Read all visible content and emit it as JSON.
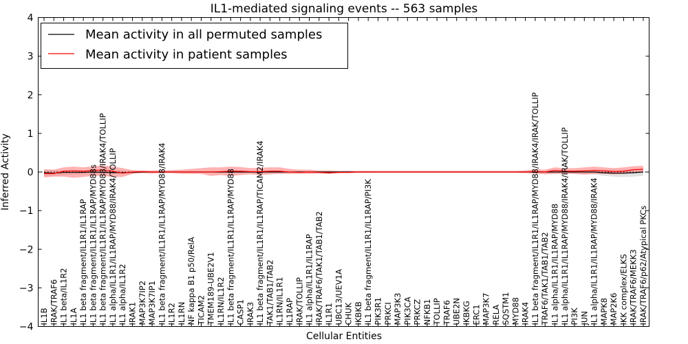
{
  "chart_data": {
    "type": "line",
    "title": "IL1-mediated signaling events -- 563 samples",
    "xlabel": "Cellular Entities",
    "ylabel": "Inferred Activity",
    "ylim": [
      -4,
      4
    ],
    "yticks": [
      -4,
      -3,
      -2,
      -1,
      0,
      1,
      2,
      3,
      4
    ],
    "grid": false,
    "legend_position": "top-left",
    "categories": [
      "IL1B",
      "IRAK/TRAF6",
      "IL1 beta/IL1R2",
      "IL1A",
      "IL1 beta fragment/IL1R1/IL1RAP",
      "IL1 beta fragment/IL1R1/IL1RAP/MYD88s",
      "IL1 beta fragment/IL1R1/IL1RAP/MYD88/IRAK4/TOLLIP",
      "IL1 alpha/IL1R1/IL1RAP/MYD88/IRAK4/TOLLIP",
      "IL1 alpha/IL1R2",
      "IRAK1",
      "MAP3K7IP2",
      "MAP3K7IP1",
      "IL1 beta fragment/IL1R1/IL1RAP/MYD88/IRAK4",
      "IL1R2",
      "IL1RN",
      "NF kappa B1 p50/RelA",
      "TICAM2",
      "TMEM189-UBE2V1",
      "IL1RN/IL1R2",
      "IL1 beta fragment/IL1R1/IL1RAP/MYD88",
      "CASP1",
      "IRAK3",
      "IL1 beta fragment/IL1R1/IL1RAP/TICAM2/IRAK4",
      "TAK1/TAB1/TAB2",
      "IL1RN/IL1R1",
      "IL1RAP",
      "IRAK/TOLLIP",
      "IL1 alpha/IL1R1/IL1RAP",
      "IRAK/TRAF6/TAK1/TAB1/TAB2",
      "IL1R1",
      "UBC13/UEV1A",
      "CHUK",
      "IKBKB",
      "IL1 beta fragment/IL1R1/IL1RAP/PI3K",
      "PIK3R1",
      "PRKCI",
      "MAP3K3",
      "PIK3CA",
      "PRKCZ",
      "NFKB1",
      "TOLLIP",
      "TRAF6",
      "UBE2N",
      "IKBKG",
      "ERC1",
      "MAP3K7",
      "RELA",
      "SQSTM1",
      "MYD88",
      "IRAK4",
      "IL1 beta fragment/IL1R1/IL1RAP/MYD88/IRAK4/IRAK/TOLLIP",
      "TRAF6/TAK1/TAB1/TAB2",
      "IL1 alpha/IL1R1/IL1RAP/MYD88",
      "IL1 alpha/IL1R1/IL1RAP/MYD88/IRAK4/IRAK/TOLLIP",
      "PI3K",
      "JUN",
      "IL1 alpha/IL1R1/IL1RAP/MYD88/IRAK4",
      "MAPK8",
      "MAP2K6",
      "IKK complex/ELKS",
      "IRAK/TRAF6/MEKK3",
      "IRAK/TRAF6/p62/Atypical PKCs"
    ],
    "series": [
      {
        "name": "Mean activity in all permuted samples",
        "color": "#000000",
        "values": [
          -0.02,
          -0.03,
          -0.01,
          -0.01,
          -0.01,
          0.0,
          -0.01,
          -0.01,
          -0.02,
          -0.01,
          0.0,
          0.0,
          0.0,
          0.0,
          0.0,
          0.0,
          0.0,
          0.0,
          0.0,
          0.0,
          0.0,
          0.0,
          0.0,
          0.0,
          0.0,
          0.0,
          0.0,
          0.0,
          0.0,
          0.0,
          0.0,
          0.0,
          0.0,
          0.0,
          0.0,
          0.0,
          0.0,
          0.0,
          0.0,
          0.0,
          0.0,
          0.0,
          0.0,
          0.0,
          0.0,
          0.0,
          0.0,
          0.0,
          0.0,
          0.0,
          0.0,
          0.0,
          0.0,
          0.0,
          0.0,
          0.0,
          0.0,
          -0.02,
          -0.03,
          -0.03,
          -0.02,
          0.0
        ],
        "lower": [
          -0.1,
          -0.1,
          -0.08,
          -0.07,
          -0.06,
          -0.05,
          -0.05,
          -0.05,
          -0.06,
          -0.04,
          -0.02,
          -0.02,
          -0.02,
          -0.02,
          -0.02,
          -0.02,
          -0.02,
          -0.02,
          -0.02,
          -0.02,
          -0.02,
          -0.02,
          -0.02,
          -0.02,
          -0.02,
          -0.02,
          -0.02,
          -0.02,
          -0.03,
          -0.03,
          -0.03,
          -0.02,
          -0.02,
          -0.02,
          -0.01,
          -0.01,
          -0.01,
          -0.01,
          -0.01,
          -0.01,
          -0.01,
          -0.01,
          -0.01,
          -0.01,
          -0.01,
          -0.01,
          -0.01,
          -0.01,
          -0.01,
          -0.02,
          -0.03,
          -0.03,
          -0.04,
          -0.05,
          -0.05,
          -0.05,
          -0.06,
          -0.1,
          -0.12,
          -0.13,
          -0.12,
          -0.1
        ],
        "upper": [
          0.06,
          0.05,
          0.05,
          0.05,
          0.05,
          0.04,
          0.04,
          0.04,
          0.04,
          0.03,
          0.02,
          0.02,
          0.02,
          0.02,
          0.02,
          0.02,
          0.02,
          0.02,
          0.02,
          0.02,
          0.02,
          0.02,
          0.02,
          0.02,
          0.02,
          0.02,
          0.02,
          0.02,
          0.02,
          0.02,
          0.02,
          0.02,
          0.02,
          0.02,
          0.01,
          0.01,
          0.01,
          0.01,
          0.01,
          0.01,
          0.01,
          0.01,
          0.01,
          0.01,
          0.01,
          0.01,
          0.01,
          0.01,
          0.01,
          0.02,
          0.03,
          0.03,
          0.04,
          0.05,
          0.05,
          0.05,
          0.05,
          0.06,
          0.06,
          0.06,
          0.06,
          0.06
        ]
      },
      {
        "name": "Mean activity in patient samples",
        "color": "#ff0000",
        "values": [
          -0.04,
          -0.04,
          0.02,
          0.03,
          0.02,
          0.04,
          0.05,
          0.02,
          -0.03,
          0.0,
          0.01,
          0.0,
          0.0,
          0.0,
          0.0,
          0.0,
          0.0,
          0.0,
          0.01,
          0.02,
          0.02,
          0.01,
          0.01,
          0.02,
          0.02,
          0.0,
          -0.01,
          0.0,
          -0.01,
          -0.02,
          -0.01,
          -0.01,
          0.0,
          0.0,
          0.0,
          0.0,
          0.0,
          0.0,
          0.0,
          0.0,
          0.0,
          0.0,
          0.0,
          0.0,
          0.0,
          0.0,
          0.0,
          0.0,
          0.0,
          0.0,
          0.01,
          0.0,
          0.04,
          0.02,
          0.02,
          0.03,
          0.04,
          0.03,
          0.01,
          0.02,
          0.06,
          0.07
        ],
        "lower": [
          -0.14,
          -0.12,
          -0.12,
          -0.15,
          -0.13,
          -0.1,
          -0.1,
          -0.13,
          -0.13,
          -0.05,
          -0.03,
          -0.04,
          -0.03,
          -0.03,
          -0.05,
          -0.05,
          -0.05,
          -0.1,
          -0.08,
          -0.1,
          -0.08,
          -0.06,
          -0.08,
          -0.06,
          -0.05,
          -0.05,
          -0.05,
          -0.05,
          -0.04,
          -0.05,
          -0.03,
          -0.03,
          -0.02,
          -0.02,
          -0.02,
          -0.02,
          -0.02,
          -0.02,
          -0.02,
          -0.02,
          -0.02,
          -0.02,
          -0.02,
          -0.02,
          -0.02,
          -0.02,
          -0.02,
          -0.02,
          -0.02,
          -0.03,
          -0.04,
          -0.06,
          -0.05,
          -0.04,
          -0.05,
          -0.07,
          -0.05,
          -0.05,
          -0.06,
          -0.05,
          -0.02,
          -0.02
        ],
        "upper": [
          0.07,
          0.06,
          0.12,
          0.14,
          0.12,
          0.15,
          0.17,
          0.14,
          0.1,
          0.05,
          0.04,
          0.04,
          0.04,
          0.05,
          0.06,
          0.08,
          0.1,
          0.12,
          0.12,
          0.14,
          0.13,
          0.1,
          0.11,
          0.12,
          0.12,
          0.08,
          0.06,
          0.06,
          0.04,
          0.04,
          0.03,
          0.03,
          0.03,
          0.03,
          0.03,
          0.03,
          0.03,
          0.03,
          0.03,
          0.03,
          0.03,
          0.03,
          0.03,
          0.03,
          0.03,
          0.03,
          0.03,
          0.03,
          0.03,
          0.04,
          0.07,
          0.06,
          0.12,
          0.1,
          0.1,
          0.12,
          0.14,
          0.12,
          0.1,
          0.12,
          0.15,
          0.16
        ]
      }
    ]
  }
}
